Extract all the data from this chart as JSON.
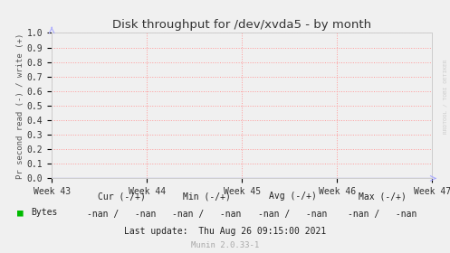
{
  "title": "Disk throughput for /dev/xvda5 - by month",
  "ylabel": "Pr second read (-) / write (+)",
  "side_label": "RRDTOOL / TOBI OETIKER",
  "xlim": [
    0,
    1
  ],
  "ylim": [
    0.0,
    1.0
  ],
  "yticks": [
    0.0,
    0.1,
    0.2,
    0.3,
    0.4,
    0.5,
    0.6,
    0.7,
    0.8,
    0.9,
    1.0
  ],
  "xtick_labels": [
    "Week 43",
    "Week 44",
    "Week 45",
    "Week 46",
    "Week 47"
  ],
  "xtick_positions": [
    0.0,
    0.25,
    0.5,
    0.75,
    1.0
  ],
  "bg_color": "#f0f0f0",
  "plot_bg_color": "#f0f0f0",
  "grid_color": "#ff9999",
  "border_color": "#cccccc",
  "title_color": "#333333",
  "axis_color": "#555555",
  "tick_color": "#333333",
  "legend_label": "Bytes",
  "legend_color": "#00bb00",
  "arrow_color": "#aaaaff",
  "cur_label": "Cur (-/+)",
  "min_label": "Min (-/+)",
  "avg_label": "Avg (-/+)",
  "max_label": "Max (-/+)",
  "cur_val": "-nan /   -nan",
  "min_val": "-nan /   -nan",
  "avg_val": "-nan /   -nan",
  "max_val": "-nan /   -nan",
  "last_update": "Last update:  Thu Aug 26 09:15:00 2021",
  "munin_version": "Munin 2.0.33-1",
  "data_line_color": "#0000cc",
  "side_label_color": "#cccccc"
}
